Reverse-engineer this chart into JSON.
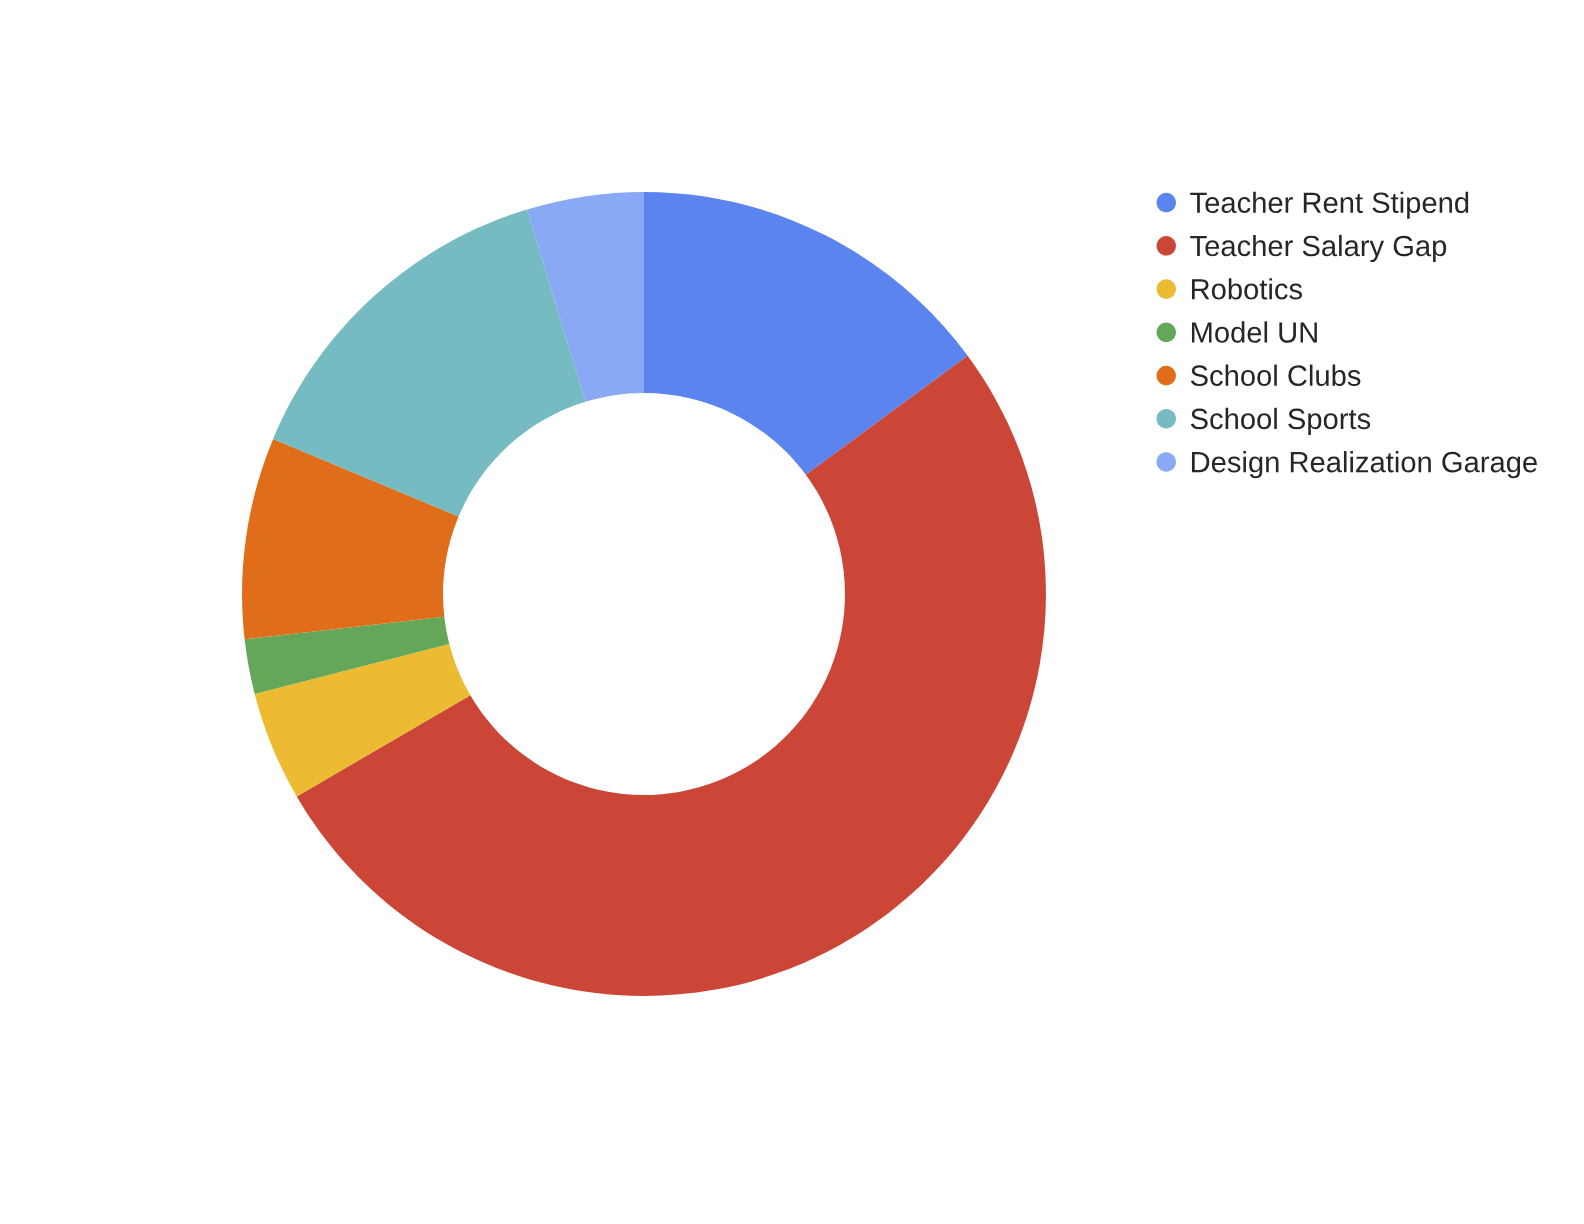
{
  "chart_data": {
    "type": "donut",
    "categories": [
      "Teacher Rent Stipend",
      "Teacher Salary Gap",
      "Robotics",
      "Model UN",
      "School Clubs",
      "School Sports",
      "Design Realization Garage"
    ],
    "values": [
      14.9,
      51.7,
      4.4,
      2.2,
      8.1,
      14.0,
      4.7
    ],
    "colors": [
      "#5b84ee",
      "#cc4637",
      "#ecbb31",
      "#65a759",
      "#e06d1a",
      "#76bac2",
      "#8aa9f4"
    ],
    "legend": "top right"
  }
}
